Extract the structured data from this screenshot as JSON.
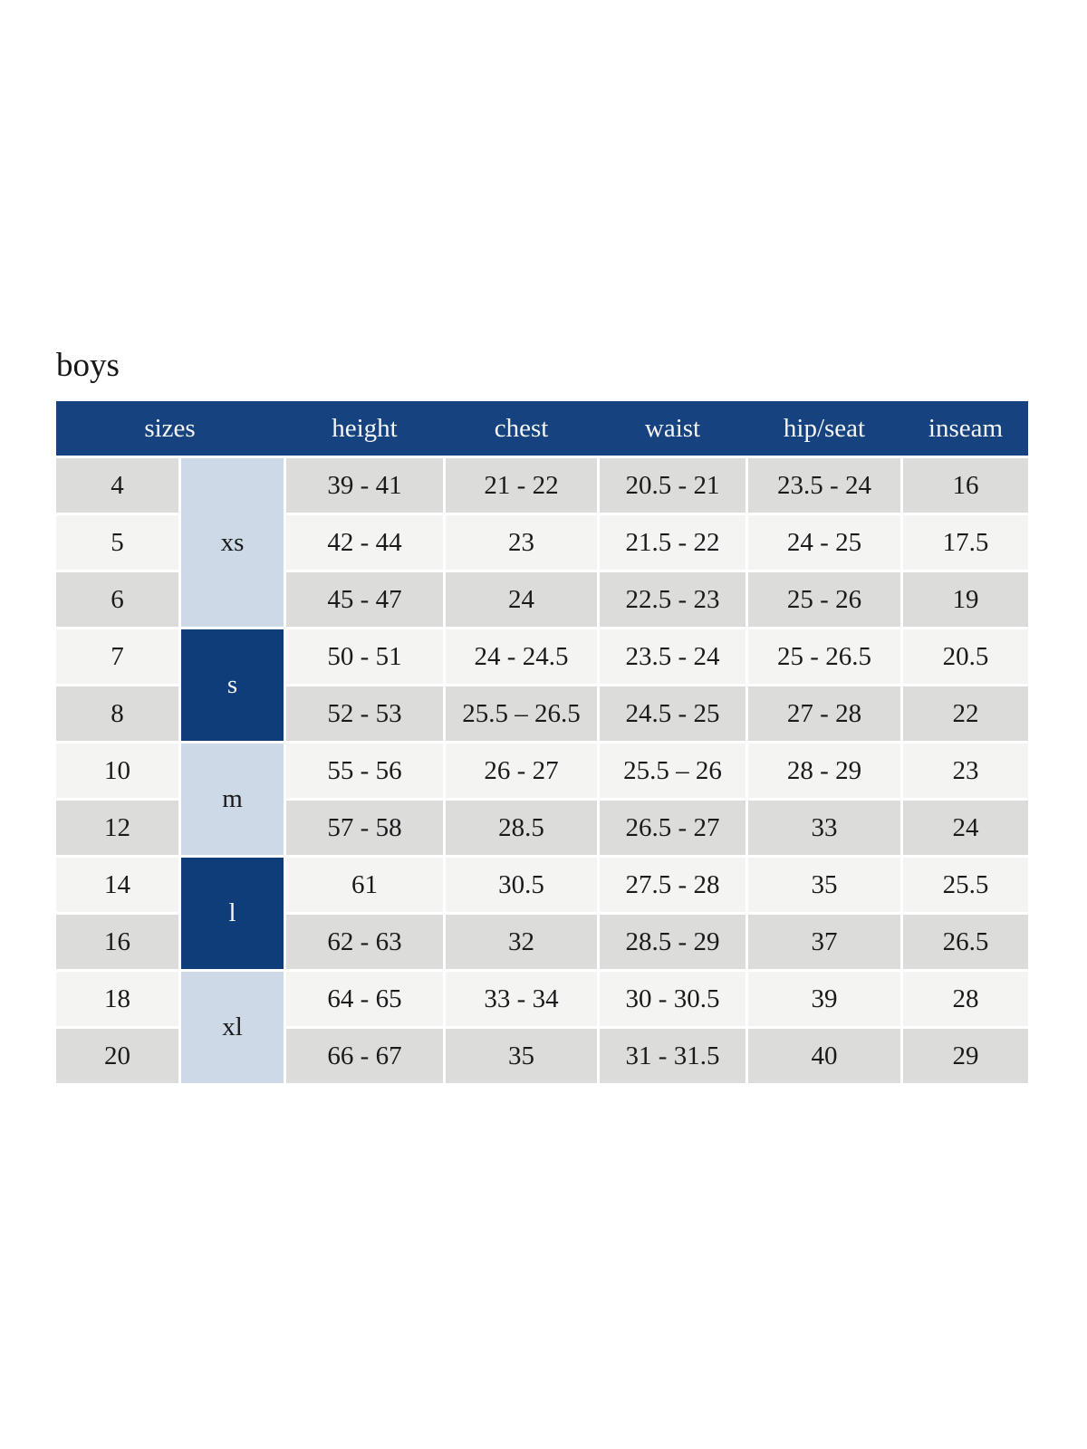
{
  "title": "boys",
  "chart_data": {
    "type": "table",
    "title": "boys",
    "columns": [
      "sizes",
      "height",
      "chest",
      "waist",
      "hip/seat",
      "inseam"
    ],
    "size_groups": [
      {
        "label": "xs",
        "sizes": [
          "4",
          "5",
          "6"
        ],
        "variant": "light"
      },
      {
        "label": "s",
        "sizes": [
          "7",
          "8"
        ],
        "variant": "dark"
      },
      {
        "label": "m",
        "sizes": [
          "10",
          "12"
        ],
        "variant": "light"
      },
      {
        "label": "l",
        "sizes": [
          "14",
          "16"
        ],
        "variant": "dark"
      },
      {
        "label": "xl",
        "sizes": [
          "18",
          "20"
        ],
        "variant": "light"
      }
    ],
    "rows": [
      {
        "size": "4",
        "group": "xs",
        "height": "39 - 41",
        "chest": "21 - 22",
        "waist": "20.5 - 21",
        "hip_seat": "23.5 - 24",
        "inseam": "16"
      },
      {
        "size": "5",
        "group": "xs",
        "height": "42 - 44",
        "chest": "23",
        "waist": "21.5 - 22",
        "hip_seat": "24 - 25",
        "inseam": "17.5"
      },
      {
        "size": "6",
        "group": "xs",
        "height": "45 - 47",
        "chest": "24",
        "waist": "22.5 - 23",
        "hip_seat": "25 - 26",
        "inseam": "19"
      },
      {
        "size": "7",
        "group": "s",
        "height": "50 - 51",
        "chest": "24 - 24.5",
        "waist": "23.5 - 24",
        "hip_seat": "25 - 26.5",
        "inseam": "20.5"
      },
      {
        "size": "8",
        "group": "s",
        "height": "52 - 53",
        "chest": "25.5 – 26.5",
        "waist": "24.5 - 25",
        "hip_seat": "27 - 28",
        "inseam": "22"
      },
      {
        "size": "10",
        "group": "m",
        "height": "55 - 56",
        "chest": "26 - 27",
        "waist": "25.5 – 26",
        "hip_seat": "28 - 29",
        "inseam": "23"
      },
      {
        "size": "12",
        "group": "m",
        "height": "57 - 58",
        "chest": "28.5",
        "waist": "26.5 - 27",
        "hip_seat": "33",
        "inseam": "24"
      },
      {
        "size": "14",
        "group": "l",
        "height": "61",
        "chest": "30.5",
        "waist": "27.5 - 28",
        "hip_seat": "35",
        "inseam": "25.5"
      },
      {
        "size": "16",
        "group": "l",
        "height": "62 - 63",
        "chest": "32",
        "waist": "28.5 - 29",
        "hip_seat": "37",
        "inseam": "26.5"
      },
      {
        "size": "18",
        "group": "xl",
        "height": "64 - 65",
        "chest": "33 - 34",
        "waist": "30 - 30.5",
        "hip_seat": "39",
        "inseam": "28"
      },
      {
        "size": "20",
        "group": "xl",
        "height": "66 - 67",
        "chest": "35",
        "waist": "31 - 31.5",
        "hip_seat": "40",
        "inseam": "29"
      }
    ]
  },
  "colors": {
    "header_bg": "#16427f",
    "group_dark_bg": "#0e3d7a",
    "group_light_bg": "#cdd9e7",
    "row_dark_bg": "#dcdcdb",
    "row_light_bg": "#f4f4f3",
    "header_text": "#f5f6f8",
    "cell_text": "#1a1a1a"
  }
}
